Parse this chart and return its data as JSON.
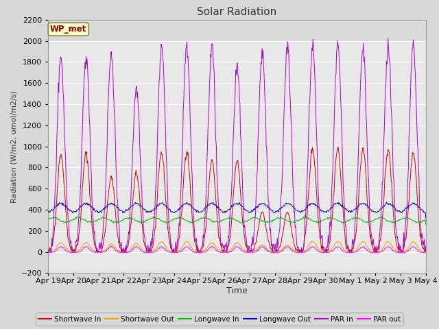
{
  "title": "Solar Radiation",
  "ylabel": "Radiation (W/m2, umol/m2/s)",
  "xlabel": "Time",
  "ylim": [
    -200,
    2200
  ],
  "yticks": [
    -200,
    0,
    200,
    400,
    600,
    800,
    1000,
    1200,
    1400,
    1600,
    1800,
    2000,
    2200
  ],
  "fig_bg_color": "#d8d8d8",
  "plot_bg_color": "#e8e8e8",
  "colors": {
    "shortwave_in": "#cc0000",
    "shortwave_out": "#ff9900",
    "longwave_in": "#00bb00",
    "longwave_out": "#0000cc",
    "par_in": "#aa00cc",
    "par_out": "#ff00ff"
  },
  "legend_labels": [
    "Shortwave In",
    "Shortwave Out",
    "Longwave In",
    "Longwave Out",
    "PAR in",
    "PAR out"
  ],
  "station_label": "WP_met",
  "x_tick_labels": [
    "Apr 19",
    "Apr 20",
    "Apr 21",
    "Apr 22",
    "Apr 23",
    "Apr 24",
    "Apr 25",
    "Apr 26",
    "Apr 27",
    "Apr 28",
    "Apr 29",
    "Apr 30",
    "May 1",
    "May 2",
    "May 3",
    "May 4"
  ],
  "n_days": 15,
  "sw_in_peaks": [
    930,
    930,
    710,
    750,
    940,
    960,
    860,
    860,
    380,
    380,
    980,
    980,
    980,
    970,
    940,
    940
  ],
  "par_in_peaks": [
    1850,
    1860,
    1890,
    1550,
    1950,
    1960,
    1940,
    1760,
    1900,
    1940,
    1940,
    1950,
    1950,
    1960,
    1960,
    1950
  ],
  "sw_out_peaks": [
    90,
    90,
    75,
    80,
    95,
    100,
    88,
    88,
    65,
    65,
    100,
    100,
    100,
    98,
    95,
    95
  ],
  "par_out_peak": 55,
  "lw_in_base": 310,
  "lw_out_base": 370
}
